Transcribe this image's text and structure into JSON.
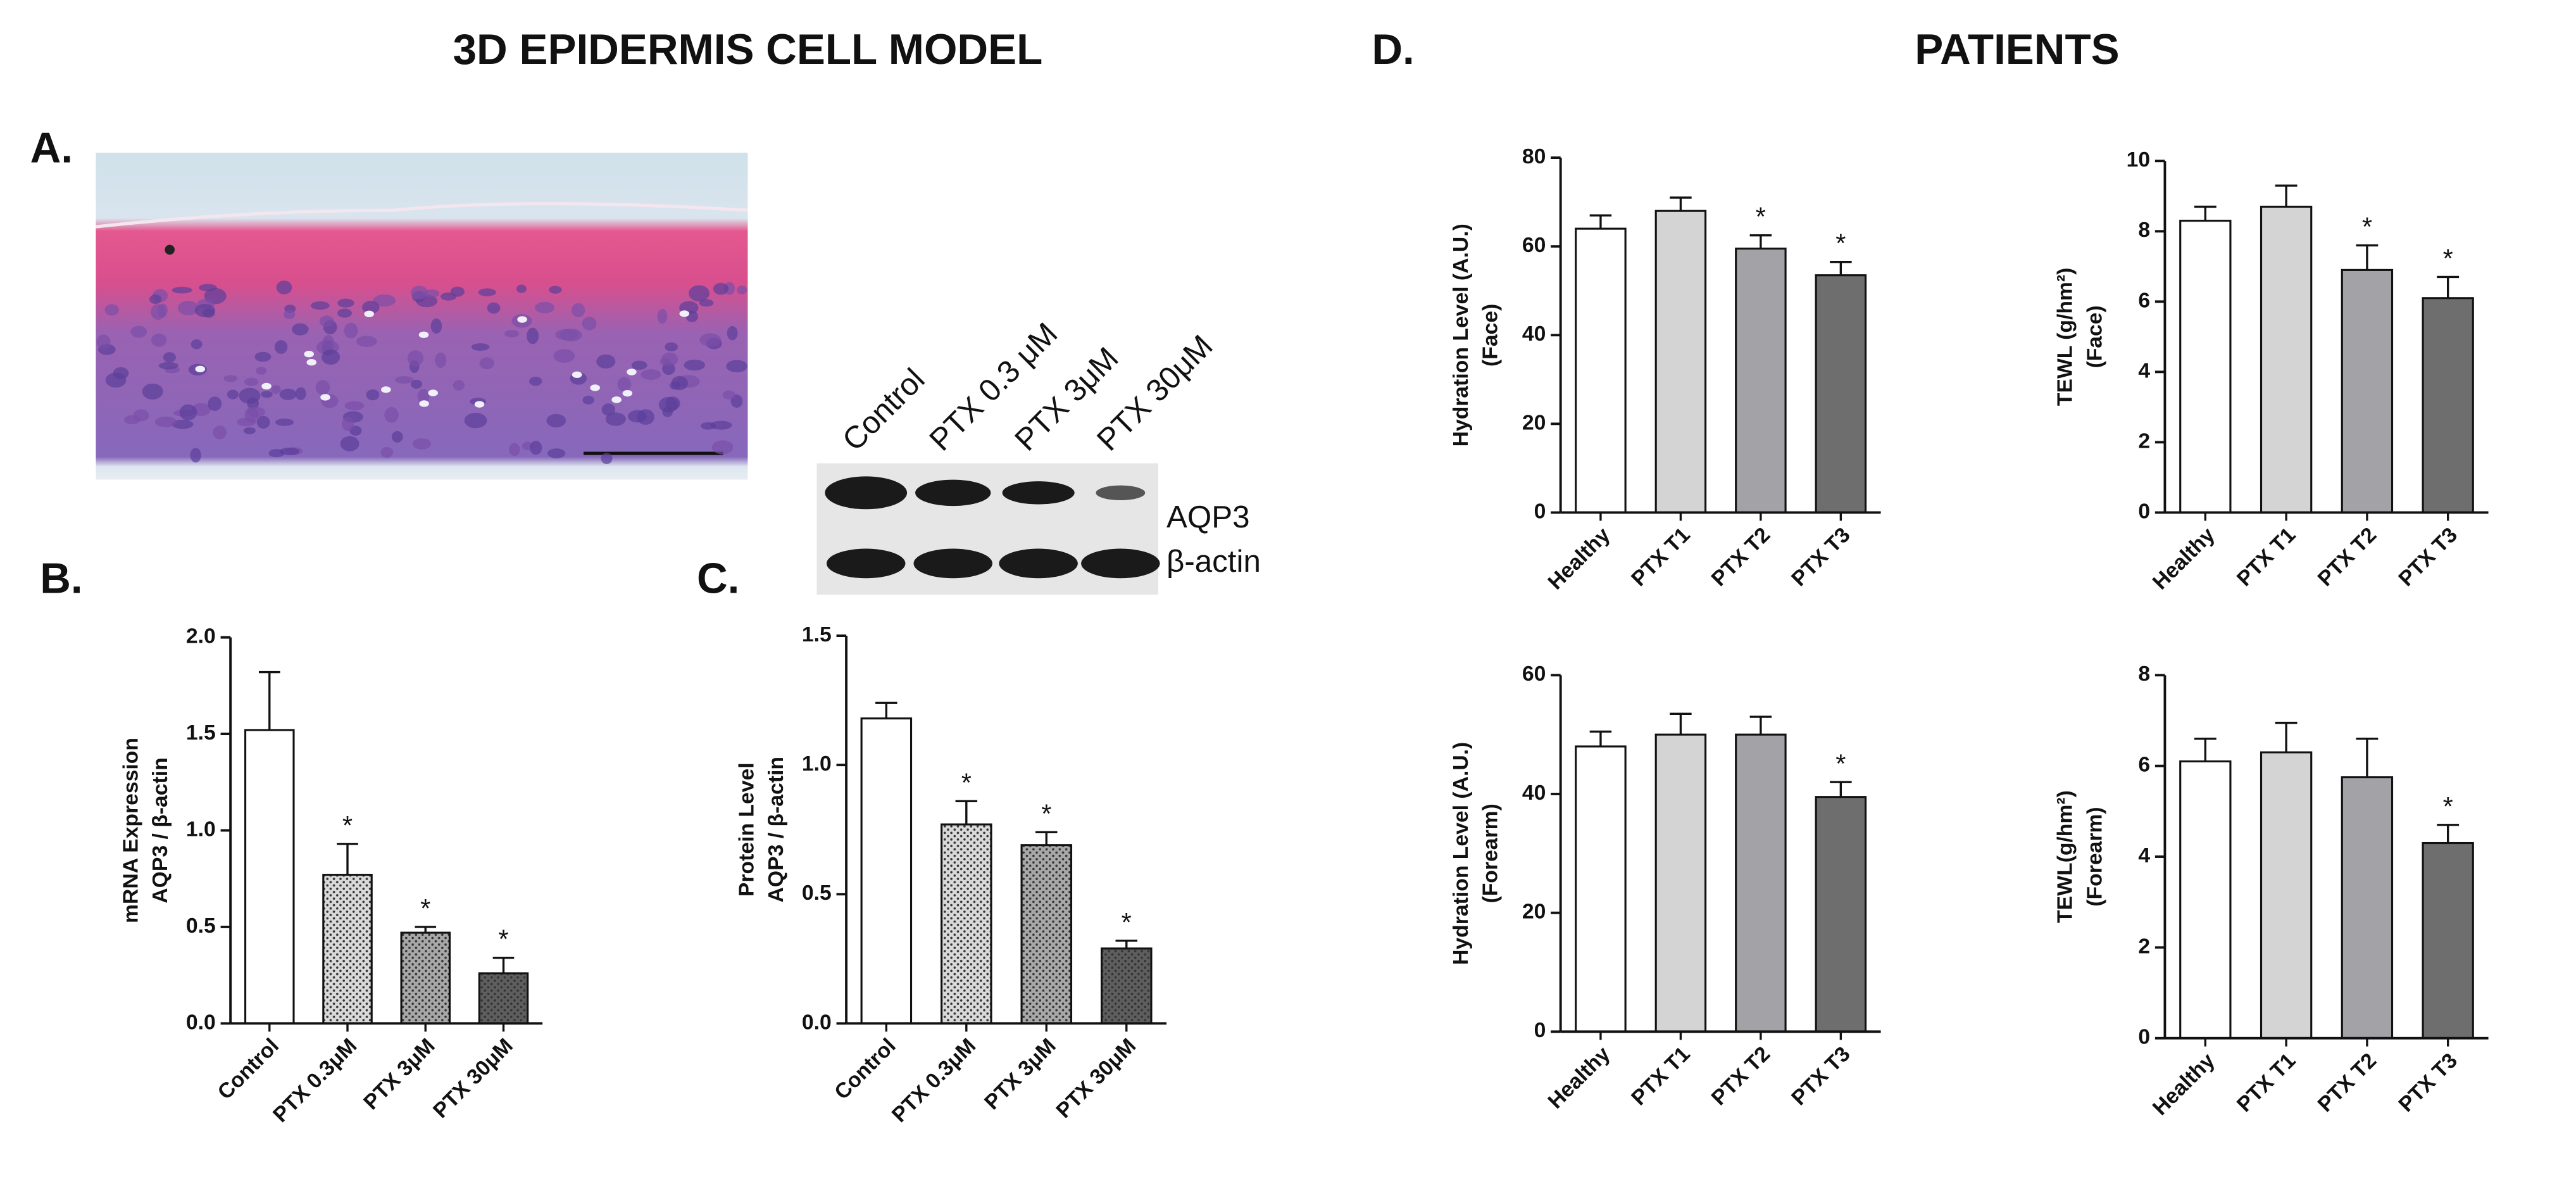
{
  "figure": {
    "title_left": "3D EPIDERMIS CELL MODEL",
    "title_right": "PATIENTS",
    "panel_labels": [
      "A.",
      "B.",
      "C.",
      "D."
    ],
    "blot": {
      "lanes": [
        "Control",
        "PTX 0.3 μM",
        "PTX 3μM",
        "PTX 30μM"
      ],
      "bands": [
        "AQP3",
        "β-actin"
      ]
    }
  },
  "chart_data": [
    {
      "type": "bar",
      "ylabel": [
        "mRNA Expression",
        "AQP3 / β-actin"
      ],
      "categories": [
        "Control",
        "PTX 0.3μM",
        "PTX 3μM",
        "PTX 30μM"
      ],
      "values": [
        1.52,
        0.77,
        0.47,
        0.26
      ],
      "errors": [
        0.3,
        0.16,
        0.03,
        0.08
      ],
      "significance": [
        null,
        "*",
        "*",
        "*"
      ],
      "colors": [
        "#ffffff",
        "#d9d9d9",
        "#a8a8a8",
        "#5e5e5e"
      ],
      "dotted": true,
      "ylim": [
        0,
        2
      ],
      "yticks": [
        {
          "value": 0,
          "label": "0.0"
        },
        0.5,
        {
          "value": 1,
          "label": "1.0"
        },
        1.5,
        {
          "value": 2,
          "label": "2.0"
        }
      ]
    },
    {
      "type": "bar",
      "ylabel": [
        "Protein Level",
        "AQP3 / β-actin"
      ],
      "categories": [
        "Control",
        "PTX 0.3μM",
        "PTX 3μM",
        "PTX 30μM"
      ],
      "values": [
        1.18,
        0.77,
        0.69,
        0.29
      ],
      "errors": [
        0.06,
        0.09,
        0.05,
        0.03
      ],
      "significance": [
        null,
        "*",
        "*",
        "*"
      ],
      "colors": [
        "#ffffff",
        "#d9d9d9",
        "#a8a8a8",
        "#5e5e5e"
      ],
      "dotted": true,
      "ylim": [
        0,
        1.5
      ],
      "yticks": [
        {
          "value": 0,
          "label": "0.0"
        },
        0.5,
        {
          "value": 1,
          "label": "1.0"
        },
        1.5
      ]
    },
    {
      "type": "bar",
      "ylabel": [
        "Hydration Level  (A.U.)",
        "(Face)"
      ],
      "categories": [
        "Healthy",
        "PTX T1",
        "PTX T2",
        "PTX T3"
      ],
      "values": [
        64,
        68,
        59.5,
        53.5
      ],
      "errors": [
        3,
        3,
        3,
        3
      ],
      "significance": [
        null,
        null,
        "*",
        "*"
      ],
      "colors": [
        "#ffffff",
        "#d4d4d4",
        "#a2a2a7",
        "#6e6e6e"
      ],
      "dotted": false,
      "ylim": [
        0,
        80
      ],
      "yticks": [
        0,
        20,
        40,
        60,
        80
      ]
    },
    {
      "type": "bar",
      "ylabel": [
        "TEWL (g/hm²)",
        "(Face)"
      ],
      "categories": [
        "Healthy",
        "PTX T1",
        "PTX T2",
        "PTX T3"
      ],
      "values": [
        8.3,
        8.7,
        6.9,
        6.1
      ],
      "errors": [
        0.4,
        0.6,
        0.7,
        0.6
      ],
      "significance": [
        null,
        null,
        "*",
        "*"
      ],
      "colors": [
        "#ffffff",
        "#d4d4d4",
        "#a2a2a7",
        "#6e6e6e"
      ],
      "dotted": false,
      "ylim": [
        0,
        10
      ],
      "yticks": [
        0,
        2,
        4,
        6,
        8,
        10
      ]
    },
    {
      "type": "bar",
      "ylabel": [
        "Hydration Level  (A.U.)",
        "(Forearm)"
      ],
      "categories": [
        "Healthy",
        "PTX T1",
        "PTX T2",
        "PTX T3"
      ],
      "values": [
        48,
        50,
        50,
        39.5
      ],
      "errors": [
        2.5,
        3.5,
        3,
        2.5
      ],
      "significance": [
        null,
        null,
        null,
        "*"
      ],
      "colors": [
        "#ffffff",
        "#d4d4d4",
        "#a2a2a7",
        "#6e6e6e"
      ],
      "dotted": false,
      "ylim": [
        0,
        60
      ],
      "yticks": [
        0,
        20,
        40,
        60
      ]
    },
    {
      "type": "bar",
      "ylabel": [
        "TEWL(g/hm²)",
        "(Forearm)"
      ],
      "categories": [
        "Healthy",
        "PTX T1",
        "PTX T2",
        "PTX T3"
      ],
      "values": [
        6.1,
        6.3,
        5.75,
        4.3
      ],
      "errors": [
        0.5,
        0.65,
        0.85,
        0.4
      ],
      "significance": [
        null,
        null,
        null,
        "*"
      ],
      "colors": [
        "#ffffff",
        "#d4d4d4",
        "#a2a2a7",
        "#6e6e6e"
      ],
      "dotted": false,
      "ylim": [
        0,
        8
      ],
      "yticks": [
        0,
        2,
        4,
        6,
        8
      ]
    }
  ]
}
